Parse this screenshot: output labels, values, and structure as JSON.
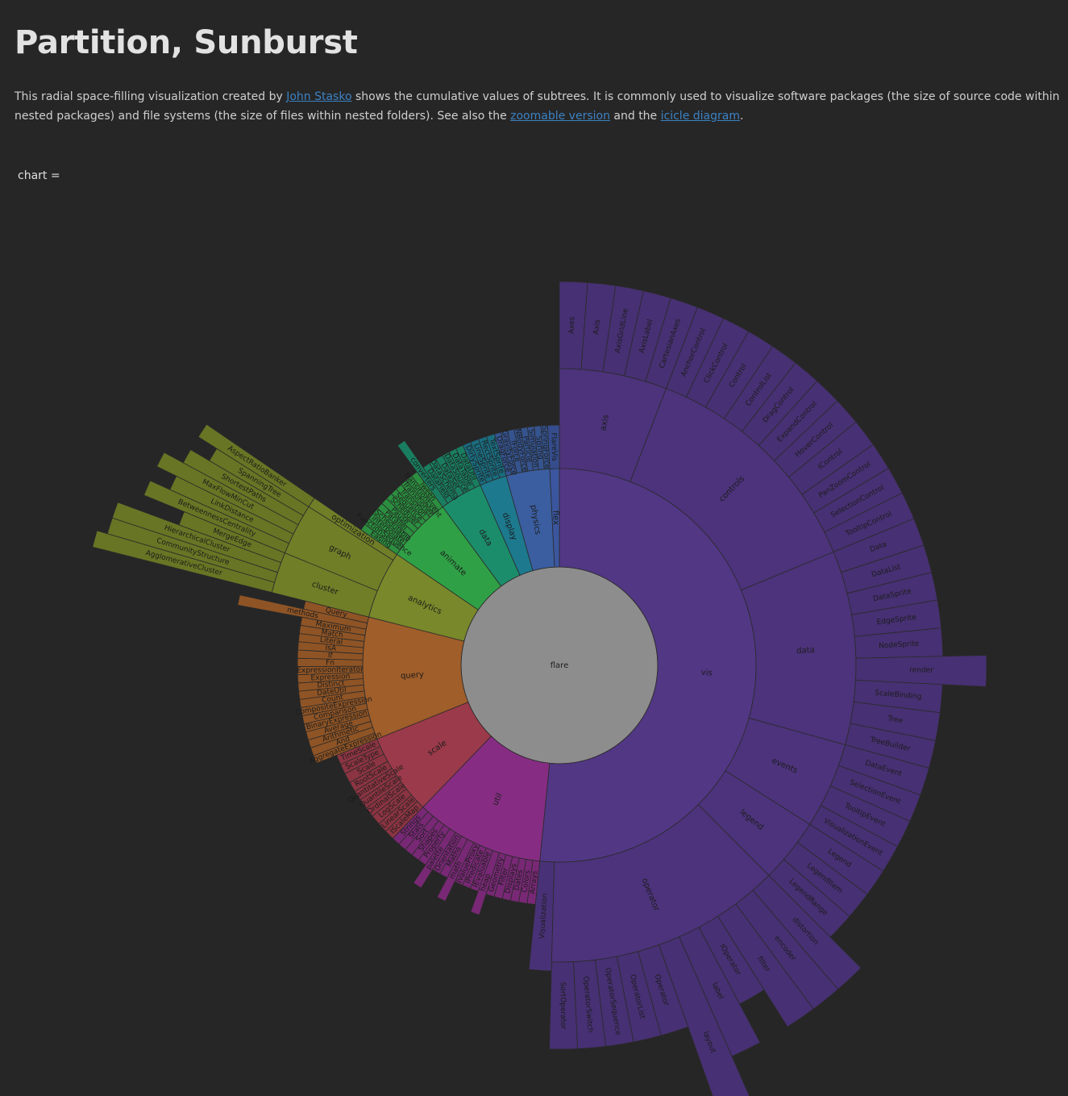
{
  "title": "Partition, Sunburst",
  "intro": {
    "text_1": "This radial space-filling visualization created by ",
    "link_author": "John Stasko",
    "text_2": " shows the cumulative values of subtrees. It is commonly used to visualize software packages (the size of source code within nested packages) and file systems (the size of files within nested folders). See also the ",
    "link_zoomable": "zoomable version",
    "text_3": " and the ",
    "link_icicle": "icicle diagram",
    "text_4": "."
  },
  "cell_label": "chart =",
  "colors": {
    "background": "#262626",
    "root": "#8d8d8d",
    "stroke": "#2a2a2a",
    "link": "#3b82c4"
  },
  "chart_data": {
    "type": "sunburst",
    "root": "flare",
    "children": [
      {
        "name": "analytics",
        "color": "#7f8f2c",
        "children": [
          {
            "name": "cluster",
            "children": [
              {
                "name": "AgglomerativeCluster",
                "depth": 0.85
              },
              {
                "name": "CommunityStructure",
                "depth": 0.8
              },
              {
                "name": "HierarchicalCluster",
                "depth": 0.8
              },
              {
                "name": "MergeEdge",
                "depth": 0.5
              }
            ]
          },
          {
            "name": "graph",
            "children": [
              {
                "name": "BetweennessCentrality",
                "depth": 0.7
              },
              {
                "name": "LinkDistance",
                "depth": 0.6
              },
              {
                "name": "MaxFlowMinCut",
                "depth": 0.7
              },
              {
                "name": "ShortestPaths",
                "depth": 0.6
              },
              {
                "name": "SpanningTree",
                "depth": 0.5
              }
            ]
          },
          {
            "name": "optimization",
            "children": [
              {
                "name": "AspectRatioBanker",
                "depth": 0.6
              }
            ]
          }
        ]
      },
      {
        "name": "animate",
        "color": "#33a84a",
        "children": [
          {
            "name": "Easing",
            "depth": 0.2
          },
          {
            "name": "FunctionSequence",
            "depth": 0.2
          },
          {
            "name": "interpolate",
            "depth": 0.2
          },
          {
            "name": "ISchedulable",
            "depth": 0.2
          },
          {
            "name": "Parallel",
            "depth": 0.2
          },
          {
            "name": "Pause",
            "depth": 0.2
          },
          {
            "name": "Scheduler",
            "depth": 0.2
          },
          {
            "name": "Sequence",
            "depth": 0.2
          },
          {
            "name": "Transition",
            "depth": 0.2
          },
          {
            "name": "Transitioner",
            "depth": 0.2
          },
          {
            "name": "TransitionEvent",
            "depth": 0.2
          },
          {
            "name": "Tween",
            "depth": 0.2
          }
        ]
      },
      {
        "name": "data",
        "color": "#1d9470",
        "children": [
          {
            "name": "converters",
            "depth": 0.35
          },
          {
            "name": "DataField",
            "depth": 0.2
          },
          {
            "name": "DataSchema",
            "depth": 0.2
          },
          {
            "name": "DataSet",
            "depth": 0.2
          },
          {
            "name": "DataSource",
            "depth": 0.2
          },
          {
            "name": "DataTable",
            "depth": 0.2
          },
          {
            "name": "DataUtil",
            "depth": 0.2
          }
        ]
      },
      {
        "name": "display",
        "color": "#1e7f95",
        "children": [
          {
            "name": "DirtySprite",
            "depth": 0.2
          },
          {
            "name": "LineSprite",
            "depth": 0.2
          },
          {
            "name": "RectSprite",
            "depth": 0.2
          },
          {
            "name": "TextSprite",
            "depth": 0.2
          }
        ]
      },
      {
        "name": "flex",
        "color": "#3e5aa6",
        "children": [
          {
            "name": "FlareVis",
            "depth": 0.2
          }
        ]
      },
      {
        "name": "physics",
        "color": "#3e63a8",
        "children": [
          {
            "name": "DragForce",
            "depth": 0.2
          },
          {
            "name": "GravityForce",
            "depth": 0.2
          },
          {
            "name": "IForce",
            "depth": 0.2
          },
          {
            "name": "NBodyForce",
            "depth": 0.2
          },
          {
            "name": "Particle",
            "depth": 0.2
          },
          {
            "name": "Simulation",
            "depth": 0.2
          },
          {
            "name": "Spring",
            "depth": 0.2
          },
          {
            "name": "SpringForce",
            "depth": 0.2
          }
        ]
      },
      {
        "name": "query",
        "color": "#a8632c",
        "children": [
          {
            "name": "AggregateExpression",
            "depth": 0.3
          },
          {
            "name": "And",
            "depth": 0.3
          },
          {
            "name": "Arithmetic",
            "depth": 0.3
          },
          {
            "name": "Average",
            "depth": 0.3
          },
          {
            "name": "BinaryExpression",
            "depth": 0.3
          },
          {
            "name": "Comparison",
            "depth": 0.3
          },
          {
            "name": "CompositeExpression",
            "depth": 0.3
          },
          {
            "name": "Count",
            "depth": 0.3
          },
          {
            "name": "DateUtil",
            "depth": 0.3
          },
          {
            "name": "Distinct",
            "depth": 0.3
          },
          {
            "name": "Expression",
            "depth": 0.3
          },
          {
            "name": "ExpressionIterator",
            "depth": 0.3
          },
          {
            "name": "Fn",
            "depth": 0.3
          },
          {
            "name": "If",
            "depth": 0.3
          },
          {
            "name": "IsA",
            "depth": 0.3
          },
          {
            "name": "Literal",
            "depth": 0.3
          },
          {
            "name": "Match",
            "depth": 0.3
          },
          {
            "name": "Maximum",
            "depth": 0.3
          },
          {
            "name": "methods",
            "depth": 0.6
          },
          {
            "name": "Query",
            "depth": 0.3
          }
        ]
      },
      {
        "name": "scale",
        "color": "#a33d4e",
        "children": [
          {
            "name": "IScaleMap",
            "depth": 0.2
          },
          {
            "name": "LinearScale",
            "depth": 0.2
          },
          {
            "name": "LogScale",
            "depth": 0.2
          },
          {
            "name": "OrdinalScale",
            "depth": 0.2
          },
          {
            "name": "QuantileScale",
            "depth": 0.2
          },
          {
            "name": "QuantitativeScale",
            "depth": 0.2
          },
          {
            "name": "RootScale",
            "depth": 0.2
          },
          {
            "name": "Scale",
            "depth": 0.2
          },
          {
            "name": "ScaleType",
            "depth": 0.2
          },
          {
            "name": "TimeScale",
            "depth": 0.2
          }
        ]
      },
      {
        "name": "util",
        "color": "#8d2f8a",
        "children": [
          {
            "name": "Arrays",
            "depth": 0.2
          },
          {
            "name": "Colors",
            "depth": 0.2
          },
          {
            "name": "Dates",
            "depth": 0.2
          },
          {
            "name": "Displays",
            "depth": 0.2
          },
          {
            "name": "Filter",
            "depth": 0.2
          },
          {
            "name": "Geometry",
            "depth": 0.2
          },
          {
            "name": "heap",
            "depth": 0.3
          },
          {
            "name": "IEvaluable",
            "depth": 0.2
          },
          {
            "name": "IPredicate",
            "depth": 0.2
          },
          {
            "name": "IValueProxy",
            "depth": 0.2
          },
          {
            "name": "math",
            "depth": 0.3
          },
          {
            "name": "Maths",
            "depth": 0.2
          },
          {
            "name": "Orientation",
            "depth": 0.2
          },
          {
            "name": "palette",
            "depth": 0.3
          },
          {
            "name": "Property",
            "depth": 0.2
          },
          {
            "name": "Shapes",
            "depth": 0.2
          },
          {
            "name": "Sort",
            "depth": 0.2
          },
          {
            "name": "Stats",
            "depth": 0.2
          },
          {
            "name": "Strings",
            "depth": 0.2
          }
        ]
      },
      {
        "name": "vis",
        "color": "#563a8c",
        "children": [
          {
            "name": "axis",
            "children": [
              {
                "name": "Axes",
                "depth": 0.4
              },
              {
                "name": "Axis",
                "depth": 0.4
              },
              {
                "name": "AxisGridLine",
                "depth": 0.4
              },
              {
                "name": "AxisLabel",
                "depth": 0.4
              },
              {
                "name": "CartesianAxes",
                "depth": 0.4
              }
            ]
          },
          {
            "name": "controls",
            "children": [
              {
                "name": "AnchorControl",
                "depth": 0.4
              },
              {
                "name": "ClickControl",
                "depth": 0.4
              },
              {
                "name": "Control",
                "depth": 0.4
              },
              {
                "name": "ControlList",
                "depth": 0.4
              },
              {
                "name": "DragControl",
                "depth": 0.4
              },
              {
                "name": "ExpandControl",
                "depth": 0.4
              },
              {
                "name": "HoverControl",
                "depth": 0.4
              },
              {
                "name": "IControl",
                "depth": 0.4
              },
              {
                "name": "PanZoomControl",
                "depth": 0.4
              },
              {
                "name": "SelectionControl",
                "depth": 0.4
              },
              {
                "name": "TooltipControl",
                "depth": 0.4
              }
            ]
          },
          {
            "name": "data",
            "children": [
              {
                "name": "Data",
                "depth": 0.4
              },
              {
                "name": "DataList",
                "depth": 0.4
              },
              {
                "name": "DataSprite",
                "depth": 0.4
              },
              {
                "name": "EdgeSprite",
                "depth": 0.4
              },
              {
                "name": "NodeSprite",
                "depth": 0.4
              },
              {
                "name": "render",
                "depth": 0.6
              },
              {
                "name": "ScaleBinding",
                "depth": 0.4
              },
              {
                "name": "Tree",
                "depth": 0.4
              },
              {
                "name": "TreeBuilder",
                "depth": 0.4
              }
            ]
          },
          {
            "name": "events",
            "children": [
              {
                "name": "DataEvent",
                "depth": 0.4
              },
              {
                "name": "SelectionEvent",
                "depth": 0.4
              },
              {
                "name": "TooltipEvent",
                "depth": 0.4
              },
              {
                "name": "VisualizationEvent",
                "depth": 0.4
              }
            ]
          },
          {
            "name": "legend",
            "children": [
              {
                "name": "Legend",
                "depth": 0.4
              },
              {
                "name": "LegendItem",
                "depth": 0.4
              },
              {
                "name": "LegendRange",
                "depth": 0.4
              }
            ]
          },
          {
            "name": "operator",
            "children": [
              {
                "name": "distortion",
                "depth": 0.6
              },
              {
                "name": "encoder",
                "depth": 0.6
              },
              {
                "name": "filter",
                "depth": 0.6
              },
              {
                "name": "IOperator",
                "depth": 0.4
              },
              {
                "name": "label",
                "depth": 0.6
              },
              {
                "name": "layout",
                "depth": 1.0
              },
              {
                "name": "Operator",
                "depth": 0.4
              },
              {
                "name": "OperatorList",
                "depth": 0.4
              },
              {
                "name": "OperatorSequence",
                "depth": 0.4
              },
              {
                "name": "OperatorSwitch",
                "depth": 0.4
              },
              {
                "name": "SortOperator",
                "depth": 0.4
              }
            ]
          },
          {
            "name": "Visualization",
            "depth": 0.5
          }
        ]
      }
    ]
  }
}
